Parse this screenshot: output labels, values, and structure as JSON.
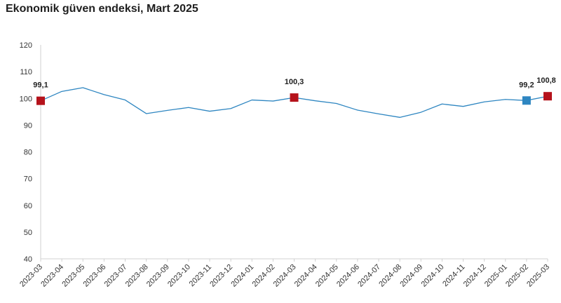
{
  "chart_data": {
    "type": "line",
    "title": "Ekonomik güven endeksi, Mart 2025",
    "xlabel": "",
    "ylabel": "",
    "ylim": [
      40,
      120
    ],
    "yticks": [
      40,
      50,
      60,
      70,
      80,
      90,
      100,
      110,
      120
    ],
    "categories": [
      "2023-03",
      "2023-04",
      "2023-05",
      "2023-06",
      "2023-07",
      "2023-08",
      "2023-09",
      "2023-10",
      "2023-11",
      "2023-12",
      "2024-01",
      "2024-02",
      "2024-03",
      "2024-04",
      "2024-05",
      "2024-06",
      "2024-07",
      "2024-08",
      "2024-09",
      "2024-10",
      "2024-11",
      "2024-12",
      "2025-01",
      "2025-02",
      "2025-03"
    ],
    "series": [
      {
        "name": "Ekonomik güven endeksi",
        "color": "#2e86c1",
        "values": [
          99.1,
          102.6,
          104.0,
          101.4,
          99.4,
          94.3,
          95.5,
          96.6,
          95.2,
          96.2,
          99.4,
          99.0,
          100.3,
          99.1,
          98.1,
          95.6,
          94.2,
          92.9,
          94.8,
          97.9,
          97.0,
          98.7,
          99.6,
          99.2,
          100.8
        ]
      }
    ],
    "highlights": [
      {
        "index": 0,
        "label": "99,1",
        "color": "#b5121b"
      },
      {
        "index": 12,
        "label": "100,3",
        "color": "#b5121b"
      },
      {
        "index": 23,
        "label": "99,2",
        "color": "#2e86c1"
      },
      {
        "index": 24,
        "label": "100,8",
        "color": "#b5121b"
      }
    ],
    "grid": false,
    "legend": "none"
  }
}
